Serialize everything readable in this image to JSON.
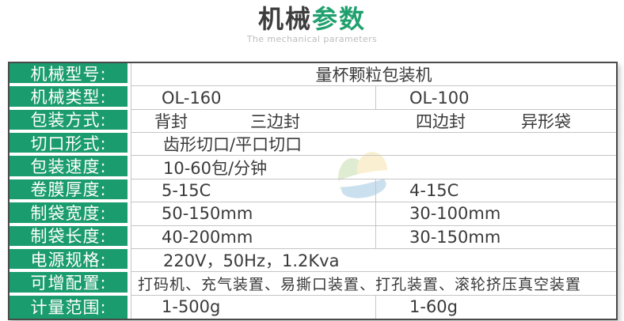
{
  "header": {
    "title_black": "机械",
    "title_green": "参数",
    "subtitle": "The mechanical parameters"
  },
  "colors": {
    "accent_green": "#1b9c6e",
    "title_dark": "#3d3d3d",
    "subtitle_gray": "#bcbcbc",
    "outer_border": "#4a4a4a",
    "grid_line": "#c5c5c5",
    "cell_text": "#3a3a3a",
    "label_text": "#ffffff",
    "watermark_green": "#d9e8c6",
    "watermark_yellow": "#f9edc6",
    "watermark_blue": "#bfd9ec"
  },
  "table": {
    "rows": [
      {
        "label": "机械型号:",
        "value": "量杯颗粒包装机"
      },
      {
        "label": "机械类型:",
        "col1": "OL-160",
        "col2": "OL-100"
      },
      {
        "label": "包装方式:",
        "items": [
          "背封",
          "三边封",
          "四边封",
          "异形袋"
        ]
      },
      {
        "label": "切口形式:",
        "value": "齿形切口/平口切口"
      },
      {
        "label": "包装速度:",
        "value": "10-60包/分钟"
      },
      {
        "label": "卷膜厚度:",
        "col1": "5-15C",
        "col2": "4-15C"
      },
      {
        "label": "制袋宽度:",
        "col1": "50-150mm",
        "col2": "30-100mm"
      },
      {
        "label": "制袋长度:",
        "col1": "40-200mm",
        "col2": "30-150mm"
      },
      {
        "label": "电源规格:",
        "value": "220V，50Hz，1.2Kva"
      },
      {
        "label": "可增配置:",
        "value": "打码机、充气装置、易撕口装置、打孔装置、滚轮挤压真空装置"
      },
      {
        "label": "计量范围:",
        "col1": "1-500g",
        "col2": "1-60g"
      }
    ]
  }
}
